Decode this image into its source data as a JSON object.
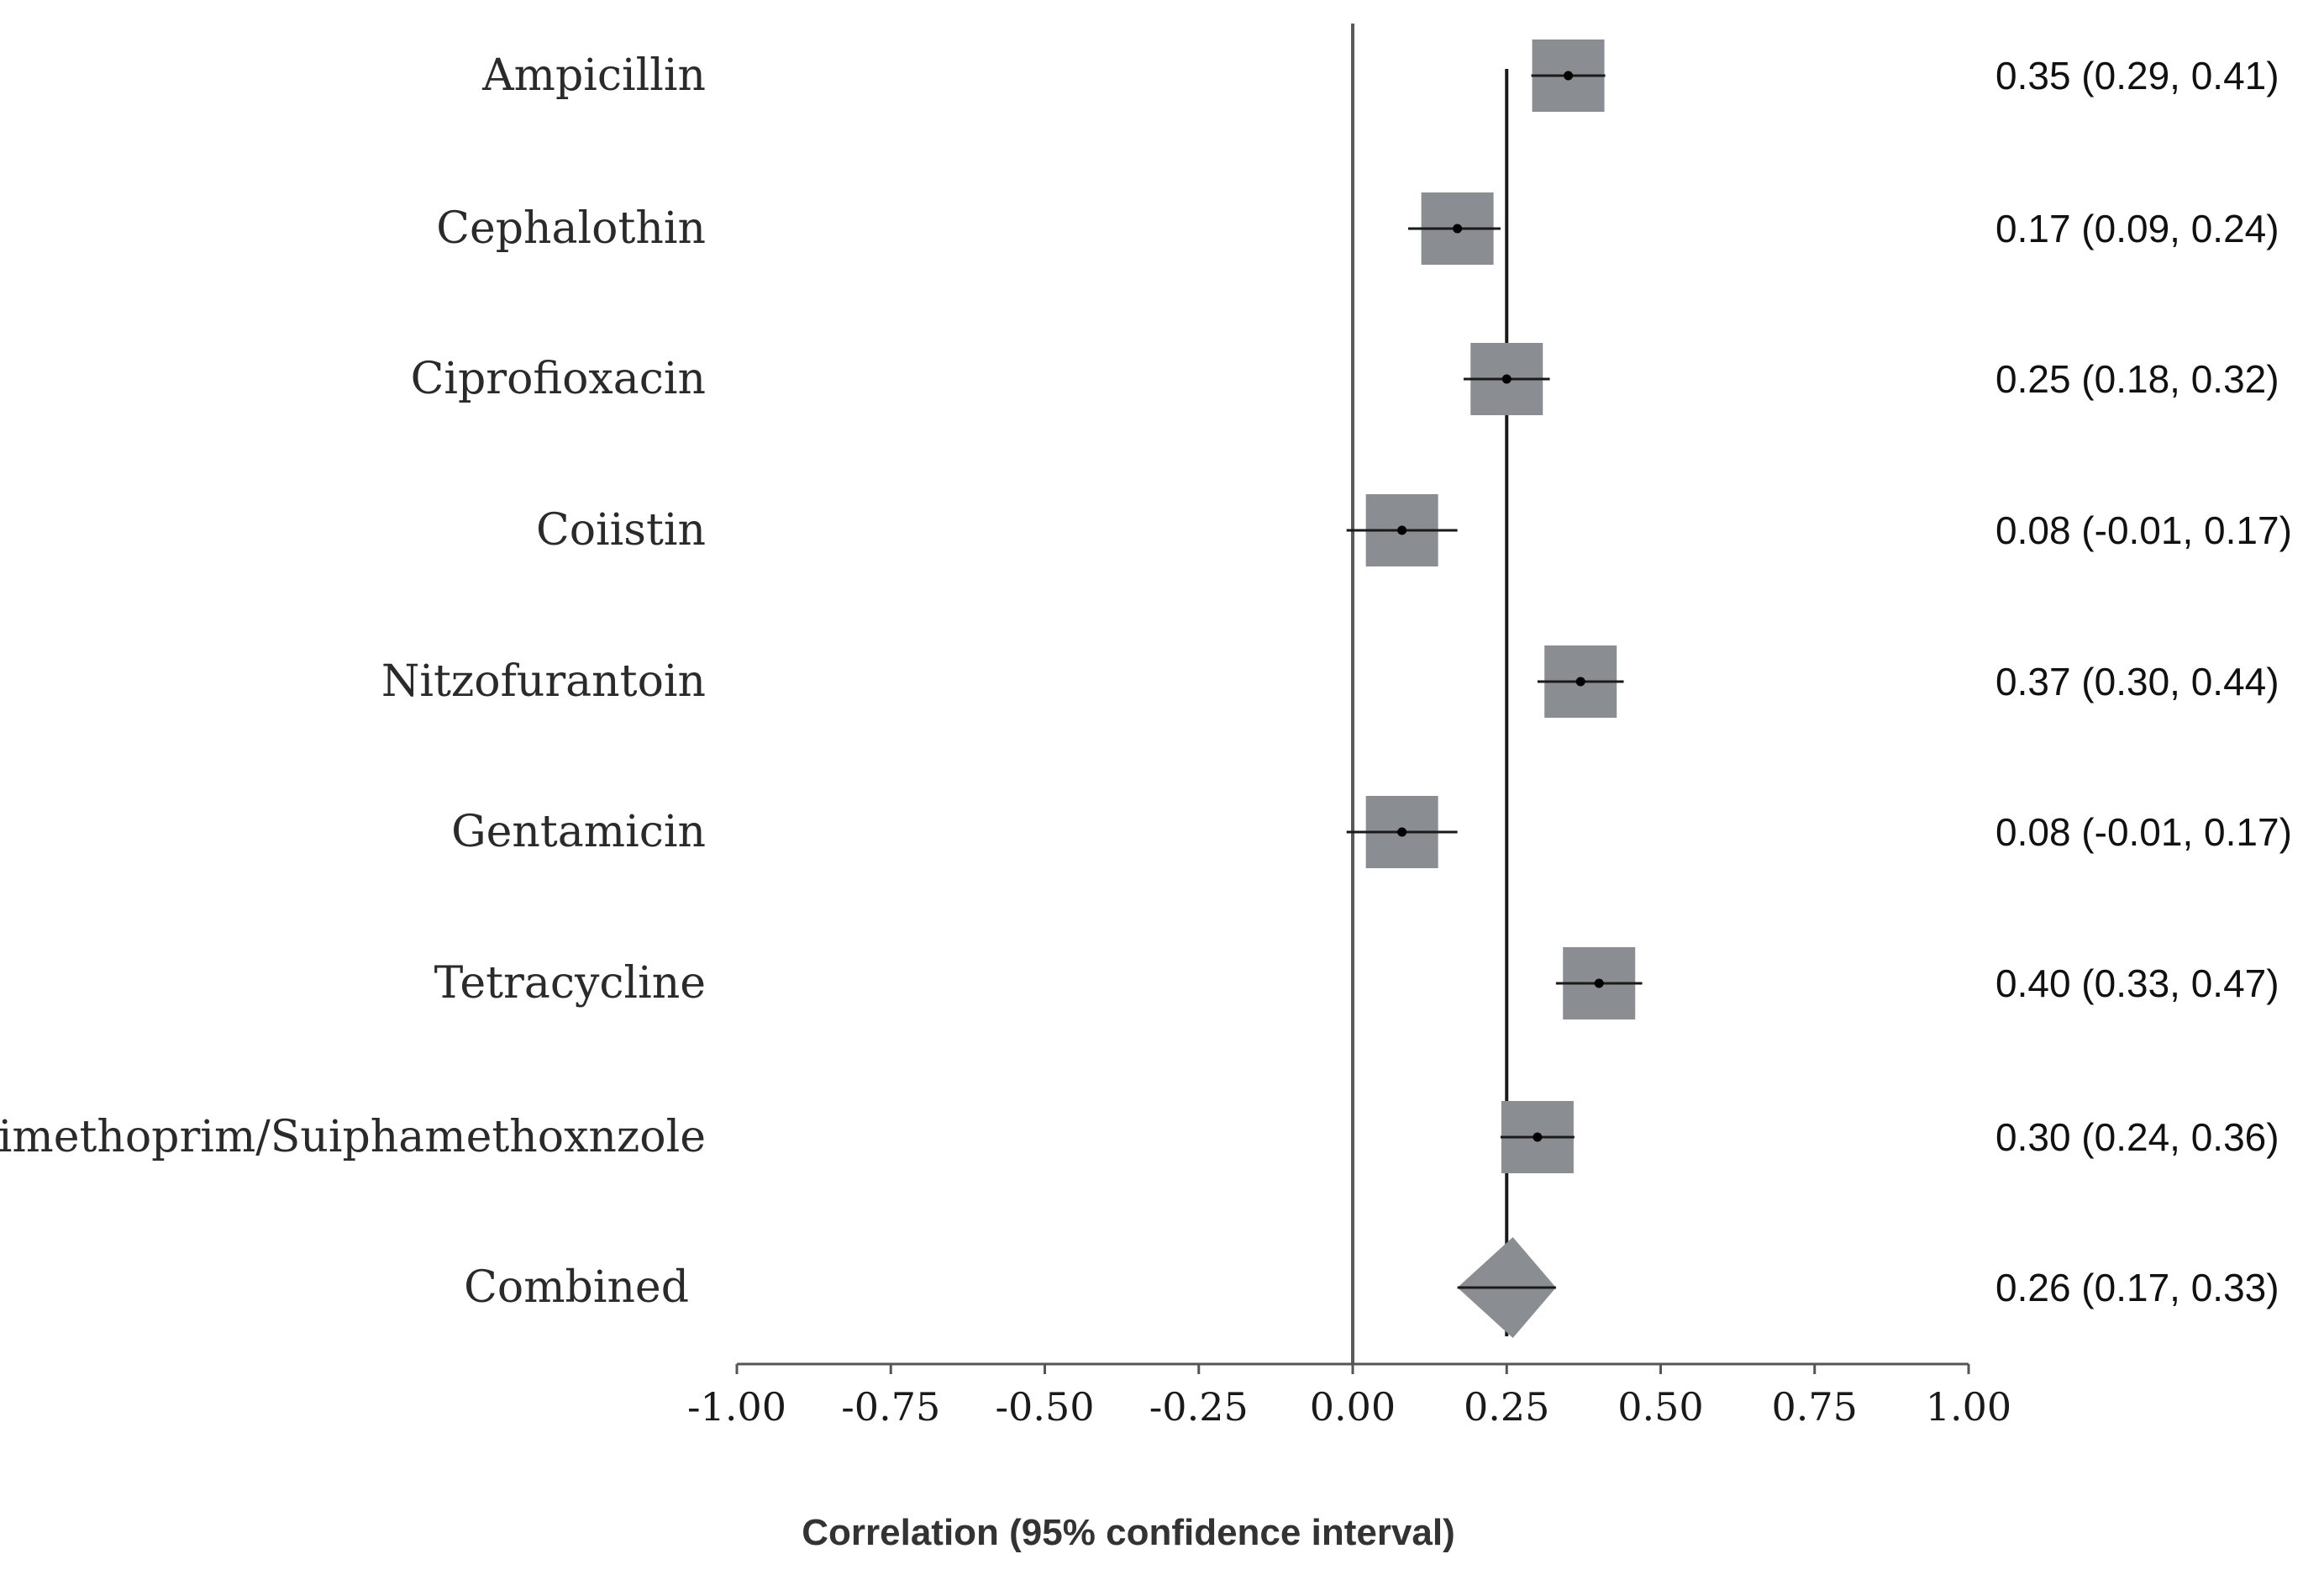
{
  "chart_data": {
    "type": "forest",
    "xlabel": "Correlation (95% confidence interval)",
    "xlim": [
      -1.0,
      1.0
    ],
    "xticks": [
      -1.0,
      -0.75,
      -0.5,
      -0.25,
      0.0,
      0.25,
      0.5,
      0.75,
      1.0
    ],
    "xtick_labels": [
      "-1.00",
      "-0.75",
      "-0.50",
      "-0.25",
      "0.00",
      "0.25",
      "0.50",
      "0.75",
      "1.00"
    ],
    "null_line": 0.0,
    "pooled_line": 0.25,
    "studies": [
      {
        "name": "Ampicillin",
        "estimate": 0.35,
        "lower": 0.29,
        "upper": 0.41,
        "label": "0.35 (0.29, 0.41)"
      },
      {
        "name": "Cephalothin",
        "estimate": 0.17,
        "lower": 0.09,
        "upper": 0.24,
        "label": "0.17 (0.09, 0.24)"
      },
      {
        "name": "Ciprofioxacin",
        "estimate": 0.25,
        "lower": 0.18,
        "upper": 0.32,
        "label": "0.25 (0.18, 0.32)"
      },
      {
        "name": "Coiistin",
        "estimate": 0.08,
        "lower": -0.01,
        "upper": 0.17,
        "label": "0.08 (-0.01, 0.17)"
      },
      {
        "name": "Nitzofurantoin",
        "estimate": 0.37,
        "lower": 0.3,
        "upper": 0.44,
        "label": "0.37 (0.30, 0.44)"
      },
      {
        "name": "Gentamicin",
        "estimate": 0.08,
        "lower": -0.01,
        "upper": 0.17,
        "label": "0.08 (-0.01, 0.17)"
      },
      {
        "name": "Tetracycline",
        "estimate": 0.4,
        "lower": 0.33,
        "upper": 0.47,
        "label": "0.40 (0.33, 0.47)"
      },
      {
        "name": "Trimethoprim/Suiphamethoxnzole",
        "estimate": 0.3,
        "lower": 0.24,
        "upper": 0.36,
        "label": "0.30 (0.24, 0.36)"
      }
    ],
    "combined": {
      "name": "Combined",
      "estimate": 0.26,
      "lower": 0.17,
      "upper": 0.33,
      "label": "0.26 (0.17, 0.33)"
    },
    "colors": {
      "box": "#8a8d92",
      "line": "#1a1a1a",
      "axis": "#555555"
    }
  }
}
